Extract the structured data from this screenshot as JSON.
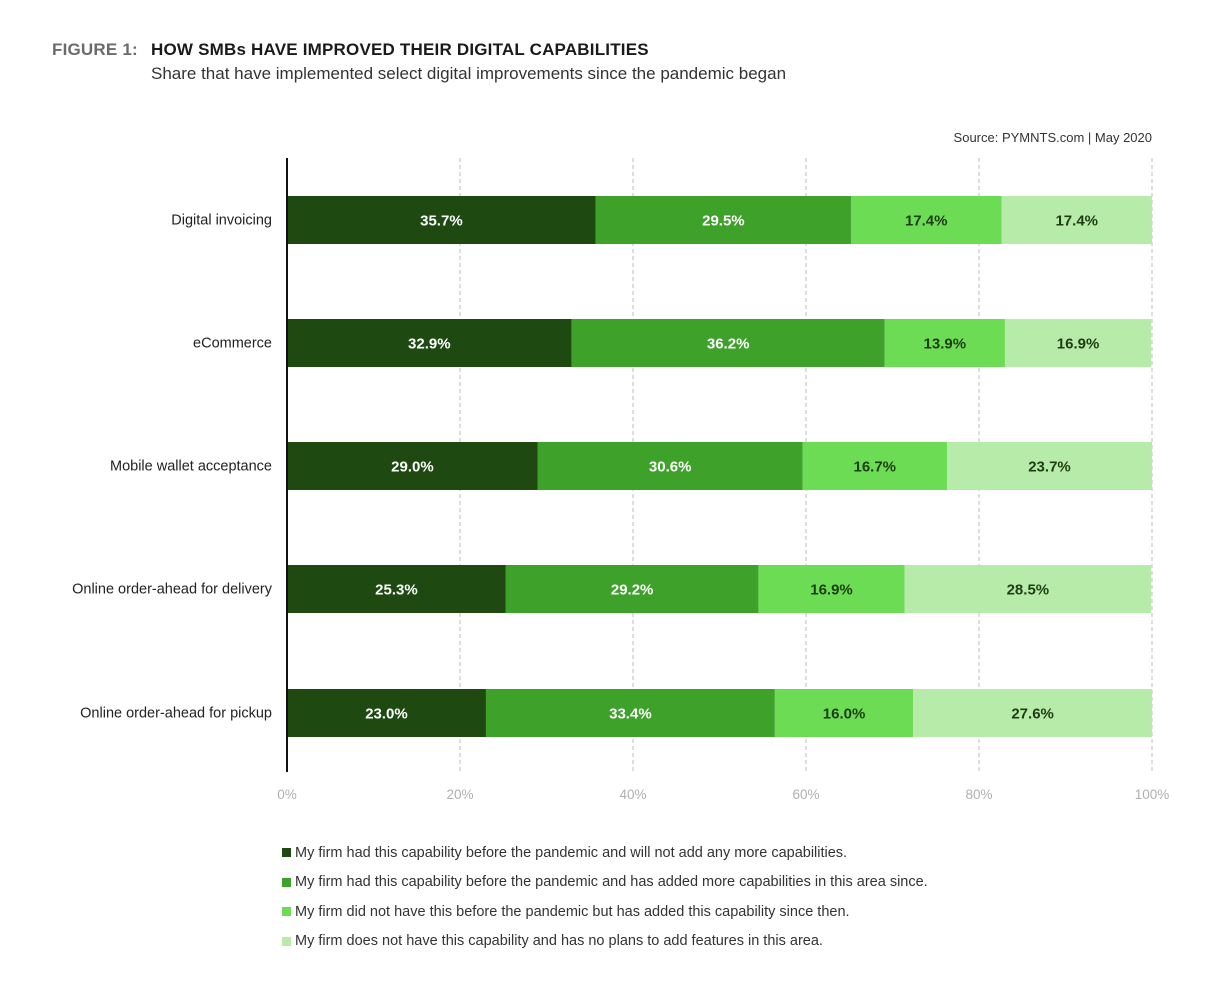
{
  "header": {
    "figure_label": "FIGURE 1:",
    "title": "HOW SMBs HAVE IMPROVED THEIR DIGITAL CAPABILITIES",
    "subtitle": "Share that have implemented select digital improvements since the pandemic began",
    "source": "Source: PYMNTS.com  |  May 2020"
  },
  "colors": [
    "#1e4a12",
    "#3ea12a",
    "#6ddc55",
    "#b7ebaa"
  ],
  "chart_data": {
    "type": "bar",
    "orientation": "horizontal",
    "stacked": true,
    "categories": [
      "Digital invoicing",
      "eCommerce",
      "Mobile wallet acceptance",
      "Online order-ahead for delivery",
      "Online order-ahead for pickup"
    ],
    "series": [
      {
        "name": "My firm had this capability before the pandemic and will not add any more capabilities.",
        "values": [
          35.7,
          32.9,
          29.0,
          25.3,
          23.0
        ]
      },
      {
        "name": "My firm had this capability before the pandemic and has added more capabilities in this area since.",
        "values": [
          29.5,
          36.2,
          30.6,
          29.2,
          33.4
        ]
      },
      {
        "name": "My firm did not have this before the pandemic but has added this capability since then.",
        "values": [
          17.4,
          13.9,
          16.7,
          16.9,
          16.0
        ]
      },
      {
        "name": "My firm does not have this capability and has no plans to add features in this area.",
        "values": [
          17.4,
          16.9,
          23.7,
          28.5,
          27.6
        ]
      }
    ],
    "xlim": [
      0,
      100
    ],
    "xticks": [
      "0%",
      "20%",
      "40%",
      "60%",
      "80%",
      "100%"
    ],
    "grid": "vertical dashed",
    "legend_position": "bottom"
  }
}
